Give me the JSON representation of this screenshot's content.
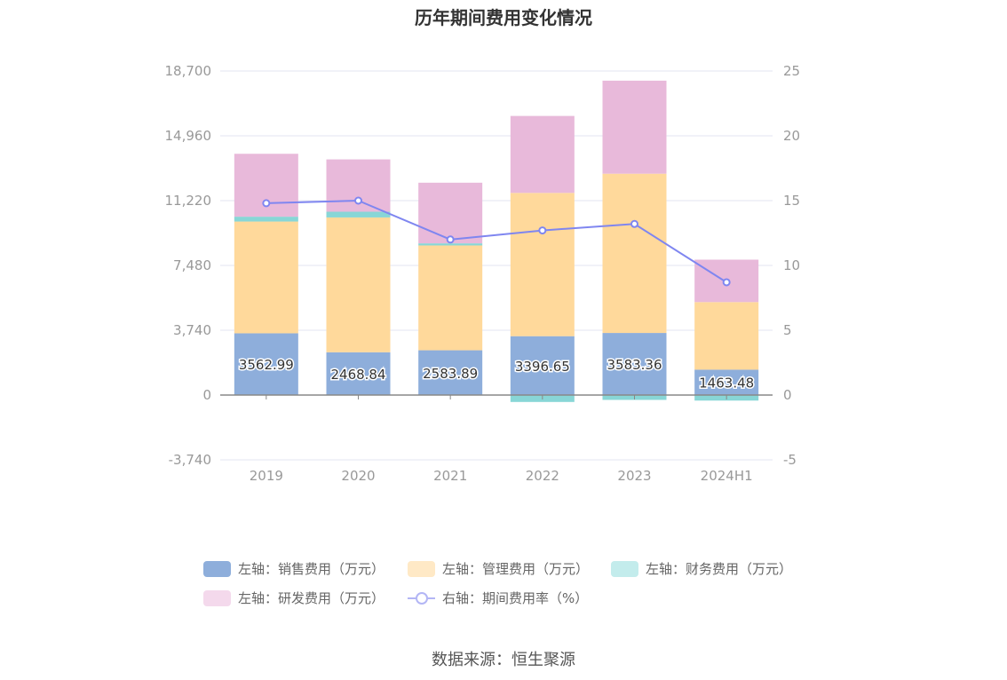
{
  "chart_data": {
    "type": "bar",
    "title": "历年期间费用变化情况",
    "categories": [
      "2019",
      "2020",
      "2021",
      "2022",
      "2023",
      "2024H1"
    ],
    "stacked": true,
    "series": [
      {
        "name": "左轴：销售费用（万元）",
        "axis": "left",
        "color": "#8eaedb",
        "values": [
          3562.99,
          2468.84,
          2583.89,
          3396.65,
          3583.36,
          1463.48
        ],
        "labels": [
          "3562.99",
          "2468.84",
          "2583.89",
          "3396.65",
          "3583.36",
          "1463.48"
        ]
      },
      {
        "name": "左轴：管理费用（万元）",
        "axis": "left",
        "color": "#ffd99b",
        "values": [
          6450,
          7780,
          6050,
          8270,
          9190,
          3900
        ]
      },
      {
        "name": "左轴：财务费用（万元）",
        "axis": "left",
        "color": "#88d6d6",
        "values": [
          280,
          330,
          120,
          -400,
          -280,
          -320
        ]
      },
      {
        "name": "左轴：研发费用（万元）",
        "axis": "left",
        "color": "#e8b9da",
        "values": [
          3630,
          3020,
          3500,
          4440,
          5370,
          2450
        ]
      },
      {
        "name": "右轴：期间费用率（%）",
        "axis": "right",
        "type": "line",
        "color": "#7f86f0",
        "values": [
          14.8,
          15.0,
          12.0,
          12.7,
          13.2,
          8.7
        ]
      }
    ],
    "left_axis": {
      "min": -3740,
      "max": 18700,
      "ticks": [
        -3740,
        0,
        3740,
        7480,
        11220,
        14960,
        18700
      ],
      "tick_labels": [
        "-3,740",
        "0",
        "3,740",
        "7,480",
        "11,220",
        "14,960",
        "18,700"
      ]
    },
    "right_axis": {
      "min": -5,
      "max": 25,
      "ticks": [
        -5,
        0,
        5,
        10,
        15,
        20,
        25
      ],
      "tick_labels": [
        "-5",
        "0",
        "5",
        "10",
        "15",
        "20",
        "25"
      ]
    },
    "legend_position": "bottom"
  },
  "legend": [
    {
      "label": "左轴：销售费用（万元）",
      "color": "#8eaedb",
      "kind": "box"
    },
    {
      "label": "左轴：管理费用（万元）",
      "color": "#ffe9c6",
      "kind": "box"
    },
    {
      "label": "左轴：财务费用（万元）",
      "color": "#c3ecec",
      "kind": "box"
    },
    {
      "label": "左轴：研发费用（万元）",
      "color": "#f4d9ec",
      "kind": "box"
    },
    {
      "label": "右轴：期间费用率（%）",
      "color": "#b3b6f5",
      "kind": "line"
    }
  ],
  "source": "数据来源：恒生聚源"
}
